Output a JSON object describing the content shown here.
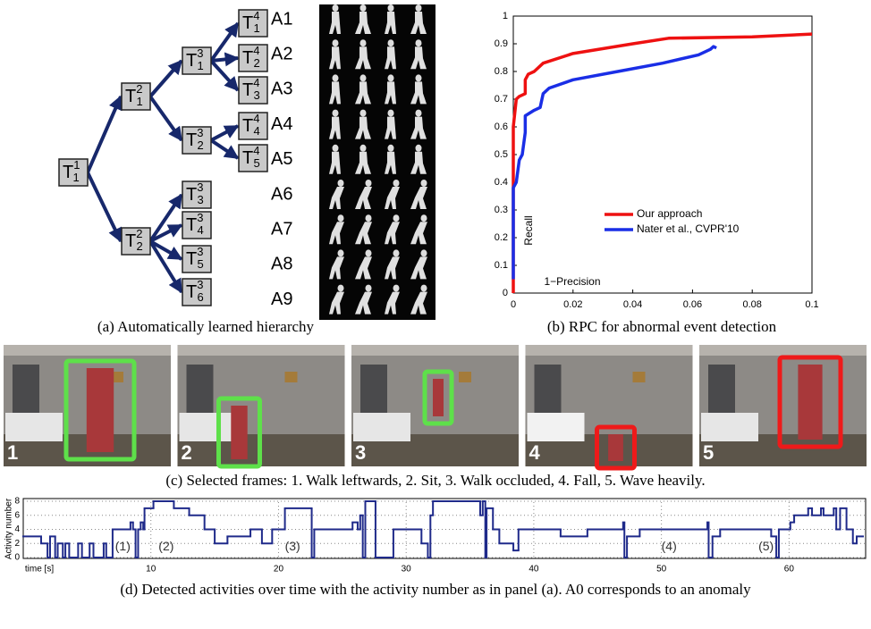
{
  "panel_a": {
    "nodes": [
      {
        "base": "T",
        "sup": "1",
        "sub": "1",
        "parent": null
      },
      {
        "base": "T",
        "sup": "2",
        "sub": "1",
        "parent": 0
      },
      {
        "base": "T",
        "sup": "2",
        "sub": "2",
        "parent": 0
      },
      {
        "base": "T",
        "sup": "3",
        "sub": "1",
        "parent": 1
      },
      {
        "base": "T",
        "sup": "3",
        "sub": "2",
        "parent": 1
      },
      {
        "base": "T",
        "sup": "3",
        "sub": "3",
        "parent": 2
      },
      {
        "base": "T",
        "sup": "3",
        "sub": "4",
        "parent": 2
      },
      {
        "base": "T",
        "sup": "3",
        "sub": "5",
        "parent": 2
      },
      {
        "base": "T",
        "sup": "3",
        "sub": "6",
        "parent": 2
      },
      {
        "base": "T",
        "sup": "4",
        "sub": "1",
        "parent": 3
      },
      {
        "base": "T",
        "sup": "4",
        "sub": "2",
        "parent": 3
      },
      {
        "base": "T",
        "sup": "4",
        "sub": "3",
        "parent": 3
      },
      {
        "base": "T",
        "sup": "4",
        "sub": "4",
        "parent": 4
      },
      {
        "base": "T",
        "sup": "4",
        "sub": "5",
        "parent": 4
      }
    ],
    "activities": [
      "A1",
      "A2",
      "A3",
      "A4",
      "A5",
      "A6",
      "A7",
      "A8",
      "A9"
    ],
    "caption": "(a)  Automatically learned hierarchy"
  },
  "chart_data": [
    {
      "type": "line",
      "caption": "(b)  RPC for abnormal event detection",
      "x_label": "1−Precision",
      "y_label": "Recall",
      "xlim": [
        0,
        0.1
      ],
      "ylim": [
        0,
        1
      ],
      "xticks": [
        0,
        0.02,
        0.04,
        0.06,
        0.08,
        0.1
      ],
      "yticks": [
        0,
        0.1,
        0.2,
        0.3,
        0.4,
        0.5,
        0.6,
        0.7,
        0.8,
        0.9,
        1
      ],
      "legend": "right",
      "series": [
        {
          "name": "Our approach",
          "color": "#ee1111",
          "x": [
            0,
            0,
            0,
            0.001,
            0.002,
            0.004,
            0.004,
            0.005,
            0.007,
            0.01,
            0.02,
            0.04,
            0.052,
            0.08,
            0.1
          ],
          "values": [
            0,
            0.05,
            0.6,
            0.7,
            0.71,
            0.72,
            0.77,
            0.79,
            0.8,
            0.83,
            0.865,
            0.9,
            0.92,
            0.925,
            0.935
          ]
        },
        {
          "name": "Nater et al., CVPR'10",
          "color": "#1a2ee6",
          "x": [
            0,
            0,
            0.001,
            0.002,
            0.003,
            0.004,
            0.004,
            0.007,
            0.009,
            0.01,
            0.012,
            0.02,
            0.035,
            0.05,
            0.062,
            0.066,
            0.067,
            0.068
          ],
          "values": [
            0.05,
            0.38,
            0.4,
            0.48,
            0.5,
            0.58,
            0.64,
            0.66,
            0.67,
            0.72,
            0.74,
            0.77,
            0.8,
            0.83,
            0.86,
            0.88,
            0.89,
            0.885
          ]
        }
      ]
    },
    {
      "type": "step",
      "caption": "(d)  Detected activities over time with the activity number as in panel (a). A0 corresponds to an anomaly",
      "x_label": "time [s]",
      "y_label": "Activity number",
      "xlim": [
        0,
        66
      ],
      "ylim": [
        0,
        8
      ],
      "xticks": [
        10,
        20,
        30,
        40,
        50,
        60
      ],
      "yticks": [
        0,
        2,
        4,
        6,
        8
      ],
      "grid": true,
      "annotations": [
        {
          "text": "(1)",
          "x": 7.8,
          "y": 1.5
        },
        {
          "text": "(2)",
          "x": 11.2,
          "y": 1.5
        },
        {
          "text": "(3)",
          "x": 21.1,
          "y": 1.5
        },
        {
          "text": "(4)",
          "x": 50.6,
          "y": 1.5
        },
        {
          "text": "(5)",
          "x": 58.2,
          "y": 1.5
        }
      ],
      "series": [
        {
          "color": "#1f2a8a",
          "x": [
            0,
            1.4,
            1.9,
            2.1,
            2.5,
            2.7,
            3.1,
            3.3,
            3.6,
            4.3,
            4.6,
            5.2,
            5.5,
            6.3,
            6.5,
            7.0,
            8.4,
            8.6,
            8.8,
            9.0,
            9.2,
            9.4,
            9.5,
            10.2,
            11.8,
            13.0,
            14.2,
            15.0,
            16.0,
            17.8,
            18.7,
            19.5,
            20.5,
            22.6,
            22.8,
            25.8,
            26.2,
            26.4,
            26.6,
            26.8,
            27.6,
            29.0,
            31.2,
            31.7,
            31.9,
            32.1,
            35.8,
            36.0,
            36.2,
            36.3,
            36.8,
            37.3,
            38.4,
            38.8,
            42.1,
            44.2,
            47.0,
            47.1,
            47.3,
            48.3,
            53.6,
            53.7,
            54.0,
            54.6,
            58.6,
            59.0,
            59.2,
            60.1,
            60.4,
            61.5,
            61.8,
            62.5,
            62.7,
            63.5,
            63.7,
            64.0,
            64.5,
            65.0,
            65.3
          ],
          "values": [
            3,
            2,
            0,
            3,
            0,
            2,
            0,
            2,
            0,
            2,
            0,
            2,
            0,
            2,
            0,
            4,
            5,
            4,
            0,
            4,
            5,
            4,
            7,
            8,
            7,
            6,
            4,
            2,
            3,
            4,
            2,
            4,
            7,
            0,
            4,
            5,
            4,
            6,
            0,
            8,
            0,
            4,
            2,
            0,
            6,
            8,
            6,
            8,
            0,
            7,
            4,
            2,
            1,
            4,
            3,
            4,
            5,
            0,
            3,
            4,
            5,
            0,
            3,
            4,
            3,
            0,
            4,
            5,
            6,
            7,
            6,
            7,
            6,
            7,
            4,
            7,
            4,
            2,
            3
          ]
        }
      ]
    }
  ],
  "panel_c": {
    "frames": [
      "1",
      "2",
      "3",
      "4",
      "5"
    ],
    "caption": "(c)  Selected frames: 1. Walk leftwards, 2. Sit, 3. Walk occluded, 4. Fall, 5. Wave heavily."
  }
}
